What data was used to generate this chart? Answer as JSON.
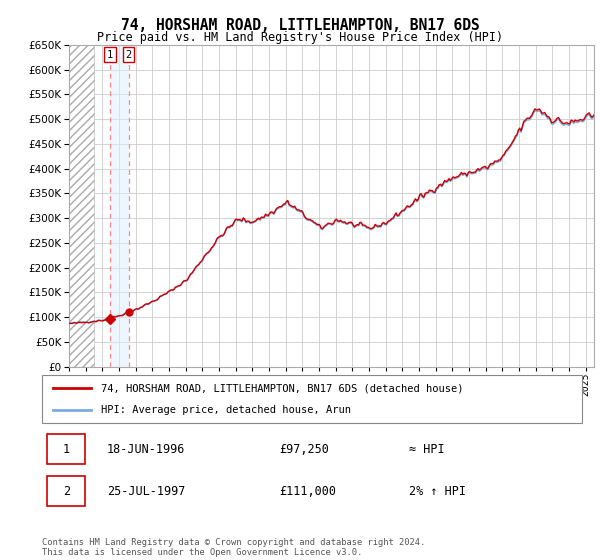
{
  "title": "74, HORSHAM ROAD, LITTLEHAMPTON, BN17 6DS",
  "subtitle": "Price paid vs. HM Land Registry's House Price Index (HPI)",
  "ylim": [
    0,
    650000
  ],
  "yticks": [
    0,
    50000,
    100000,
    150000,
    200000,
    250000,
    300000,
    350000,
    400000,
    450000,
    500000,
    550000,
    600000,
    650000
  ],
  "xlim_start": 1994.0,
  "xlim_end": 2025.5,
  "transaction1_date": 1996.46,
  "transaction1_price": 97250,
  "transaction1_label": "1",
  "transaction2_date": 1997.57,
  "transaction2_price": 111000,
  "transaction2_label": "2",
  "hpi_line_color": "#7aace0",
  "price_line_color": "#cc0000",
  "marker_color": "#cc0000",
  "dashed_line_color": "#ff8888",
  "hatch_end": 1995.5,
  "legend_line1": "74, HORSHAM ROAD, LITTLEHAMPTON, BN17 6DS (detached house)",
  "legend_line2": "HPI: Average price, detached house, Arun",
  "table_row1_num": "1",
  "table_row1_date": "18-JUN-1996",
  "table_row1_price": "£97,250",
  "table_row1_hpi": "≈ HPI",
  "table_row2_num": "2",
  "table_row2_date": "25-JUL-1997",
  "table_row2_price": "£111,000",
  "table_row2_hpi": "2% ↑ HPI",
  "footer": "Contains HM Land Registry data © Crown copyright and database right 2024.\nThis data is licensed under the Open Government Licence v3.0."
}
